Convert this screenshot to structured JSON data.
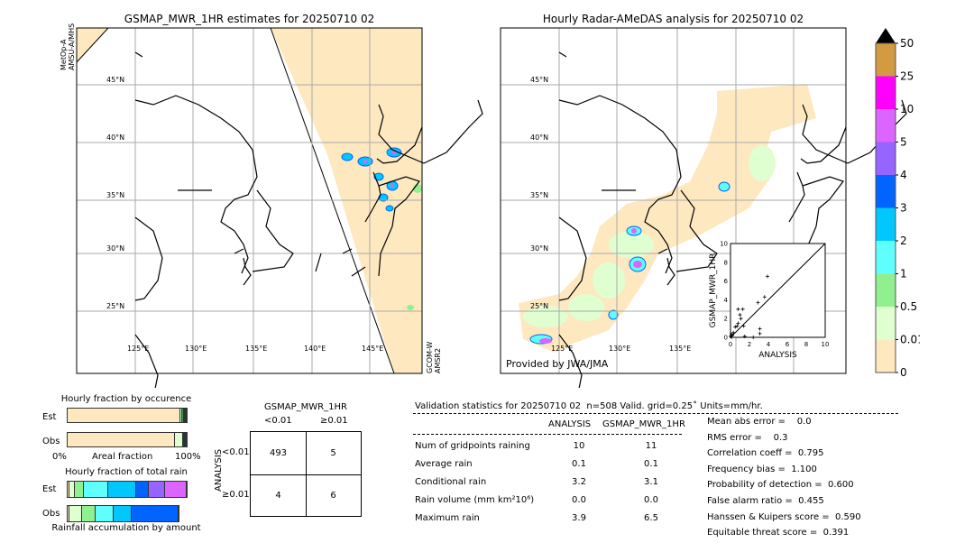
{
  "left_map": {
    "title": "GSMAP_MWR_1HR estimates for 20250710 02",
    "sat_top": "MetOp-A\nAMSU-A/MHS",
    "sat_top_l1": "MetOp-A",
    "sat_top_l2": "AMSU-A/MHS",
    "sat_bottom_l1": "GCOM-W",
    "sat_bottom_l2": "AMSR2"
  },
  "right_map": {
    "title": "Hourly Radar-AMeDAS analysis for 20250710 02",
    "credit": "Provided by JWA/JMA"
  },
  "lat_labels": [
    "45°N",
    "40°N",
    "35°N",
    "30°N",
    "25°N"
  ],
  "lon_labels": [
    "125°E",
    "130°E",
    "135°E",
    "140°E",
    "145°E"
  ],
  "colorbar": {
    "ticks": [
      "0",
      "0.01",
      "0.5",
      "1",
      "2",
      "3",
      "4",
      "5",
      "10",
      "25",
      "50"
    ],
    "colors": [
      "#fee8c0",
      "#e0ffd0",
      "#90f090",
      "#5fffff",
      "#00c8ff",
      "#0064ff",
      "#9664ff",
      "#dc64ff",
      "#ff00ff",
      "#d29b41"
    ],
    "extend_color": "#000000"
  },
  "occurrence": {
    "title": "Hourly fraction by occurence",
    "est_label": "Est",
    "obs_label": "Obs",
    "x0": "0%",
    "xlabel": "Areal fraction",
    "x1": "100%",
    "est": [
      {
        "c": "#fee8c0",
        "v": 95
      },
      {
        "c": "#e0ffd0",
        "v": 1.5
      },
      {
        "c": "#40a040",
        "v": 1
      },
      {
        "c": "#1a3a3a",
        "v": 2.5
      }
    ],
    "obs": [
      {
        "c": "#fee8c0",
        "v": 90.5
      },
      {
        "c": "#e0ffd0",
        "v": 6.5
      },
      {
        "c": "#c8c8c8",
        "v": 0.5
      },
      {
        "c": "#1a3a3a",
        "v": 2.5
      }
    ]
  },
  "total_rain": {
    "title": "Hourly fraction of total rain",
    "est_label": "Est",
    "obs_label": "Obs",
    "xlabel": "Rainfall accumulation by amount",
    "est": [
      {
        "c": "#fee8c0",
        "v": 1.5
      },
      {
        "c": "#e0ffd0",
        "v": 4.3
      },
      {
        "c": "#90f090",
        "v": 8.2
      },
      {
        "c": "#5fffff",
        "v": 20
      },
      {
        "c": "#00c8ff",
        "v": 23.8
      },
      {
        "c": "#0064ff",
        "v": 10.7
      },
      {
        "c": "#9664ff",
        "v": 13
      },
      {
        "c": "#dc64ff",
        "v": 18.5
      }
    ],
    "obs": [
      {
        "c": "#fee8c0",
        "v": 1.5
      },
      {
        "c": "#e0ffd0",
        "v": 10.5
      },
      {
        "c": "#90f090",
        "v": 11.7
      },
      {
        "c": "#5fffff",
        "v": 15
      },
      {
        "c": "#00c8ff",
        "v": 14.8
      },
      {
        "c": "#0064ff",
        "v": 39.5
      }
    ]
  },
  "contingency": {
    "title": "GSMAP_MWR_1HR",
    "col1": "<0.01",
    "col2": "≥0.01",
    "ylabel": "ANALYSIS",
    "row1": "<0.01",
    "row2": "≥0.01",
    "cells": [
      "493",
      "5",
      "4",
      "6"
    ]
  },
  "stats": {
    "header": "Validation statistics for 20250710 02  n=508 Valid. grid=0.25˚ Units=mm/hr.",
    "col_analysis": "ANALYSIS",
    "col_gsmap": "GSMAP_MWR_1HR",
    "rows": [
      {
        "label": "Num of gridpoints raining",
        "a": "10",
        "g": "11"
      },
      {
        "label": "Average rain",
        "a": "0.1",
        "g": "0.1"
      },
      {
        "label": "Conditional rain",
        "a": "3.2",
        "g": "3.1"
      },
      {
        "label": "Rain volume (mm km²10⁶)",
        "a": "0.0",
        "g": "0.0"
      },
      {
        "label": "Maximum rain",
        "a": "3.9",
        "g": "6.5"
      }
    ],
    "scores": [
      "Mean abs error =    0.0",
      "RMS error =    0.3",
      "Correlation coeff =  0.795",
      "Frequency bias =  1.100",
      "Probability of detection =  0.600",
      "False alarm ratio =  0.455",
      "Hanssen & Kuipers score =  0.590",
      "Equitable threat score =  0.391"
    ]
  },
  "chart_data": {
    "type": "scatter",
    "xlabel": "ANALYSIS",
    "ylabel": "GSMAP_MWR_1HR",
    "xlim": [
      0,
      10
    ],
    "ylim": [
      0,
      10
    ],
    "ticks": [
      "0",
      "2",
      "4",
      "6",
      "8",
      "10"
    ],
    "x": [
      3.9,
      3.6,
      2.9,
      0.8,
      1.3,
      1.0,
      1.1,
      0.8,
      0.5,
      0.7,
      1.4,
      3.1,
      3.1,
      1.5,
      2.4,
      0.1,
      0.2,
      0.0,
      0.3,
      0.1
    ],
    "y": [
      6.5,
      4.3,
      3.7,
      3.0,
      3.0,
      2.4,
      2.0,
      1.5,
      1.1,
      1.2,
      1.2,
      0.9,
      0.4,
      0.1,
      0.0,
      0.3,
      0.2,
      0.1,
      0.5,
      0.0
    ]
  }
}
